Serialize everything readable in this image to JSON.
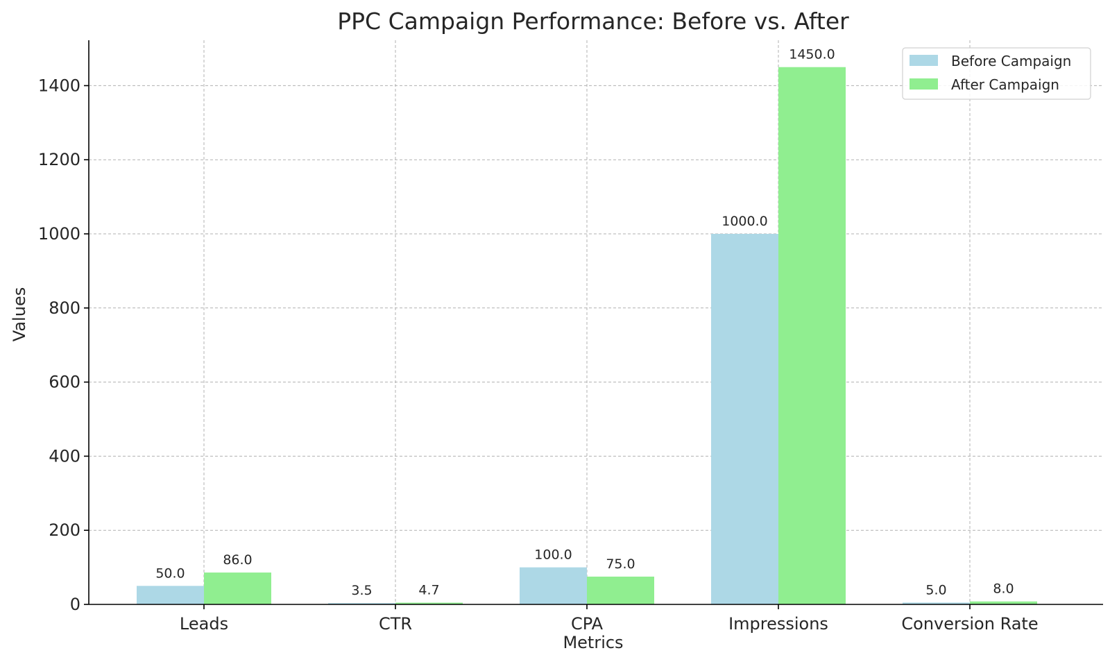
{
  "chart_data": {
    "type": "bar",
    "title": "PPC Campaign Performance: Before vs. After",
    "xlabel": "Metrics",
    "ylabel": "Values",
    "categories": [
      "Leads",
      "CTR",
      "CPA",
      "Impressions",
      "Conversion Rate"
    ],
    "series": [
      {
        "name": "Before Campaign",
        "values": [
          50.0,
          3.5,
          100.0,
          1000.0,
          5.0
        ],
        "labels": [
          "50.0",
          "3.5",
          "100.0",
          "1000.0",
          "5.0"
        ],
        "color": "#add8e6"
      },
      {
        "name": "After Campaign",
        "values": [
          86.0,
          4.7,
          75.0,
          1450.0,
          8.0
        ],
        "labels": [
          "86.0",
          "4.7",
          "75.0",
          "1450.0",
          "8.0"
        ],
        "color": "#90ee90"
      }
    ],
    "ylim": [
      0,
      1522.5
    ],
    "yticks": [
      0,
      200,
      400,
      600,
      800,
      1000,
      1200,
      1400
    ],
    "grid": true,
    "legend_position": "top-right"
  }
}
